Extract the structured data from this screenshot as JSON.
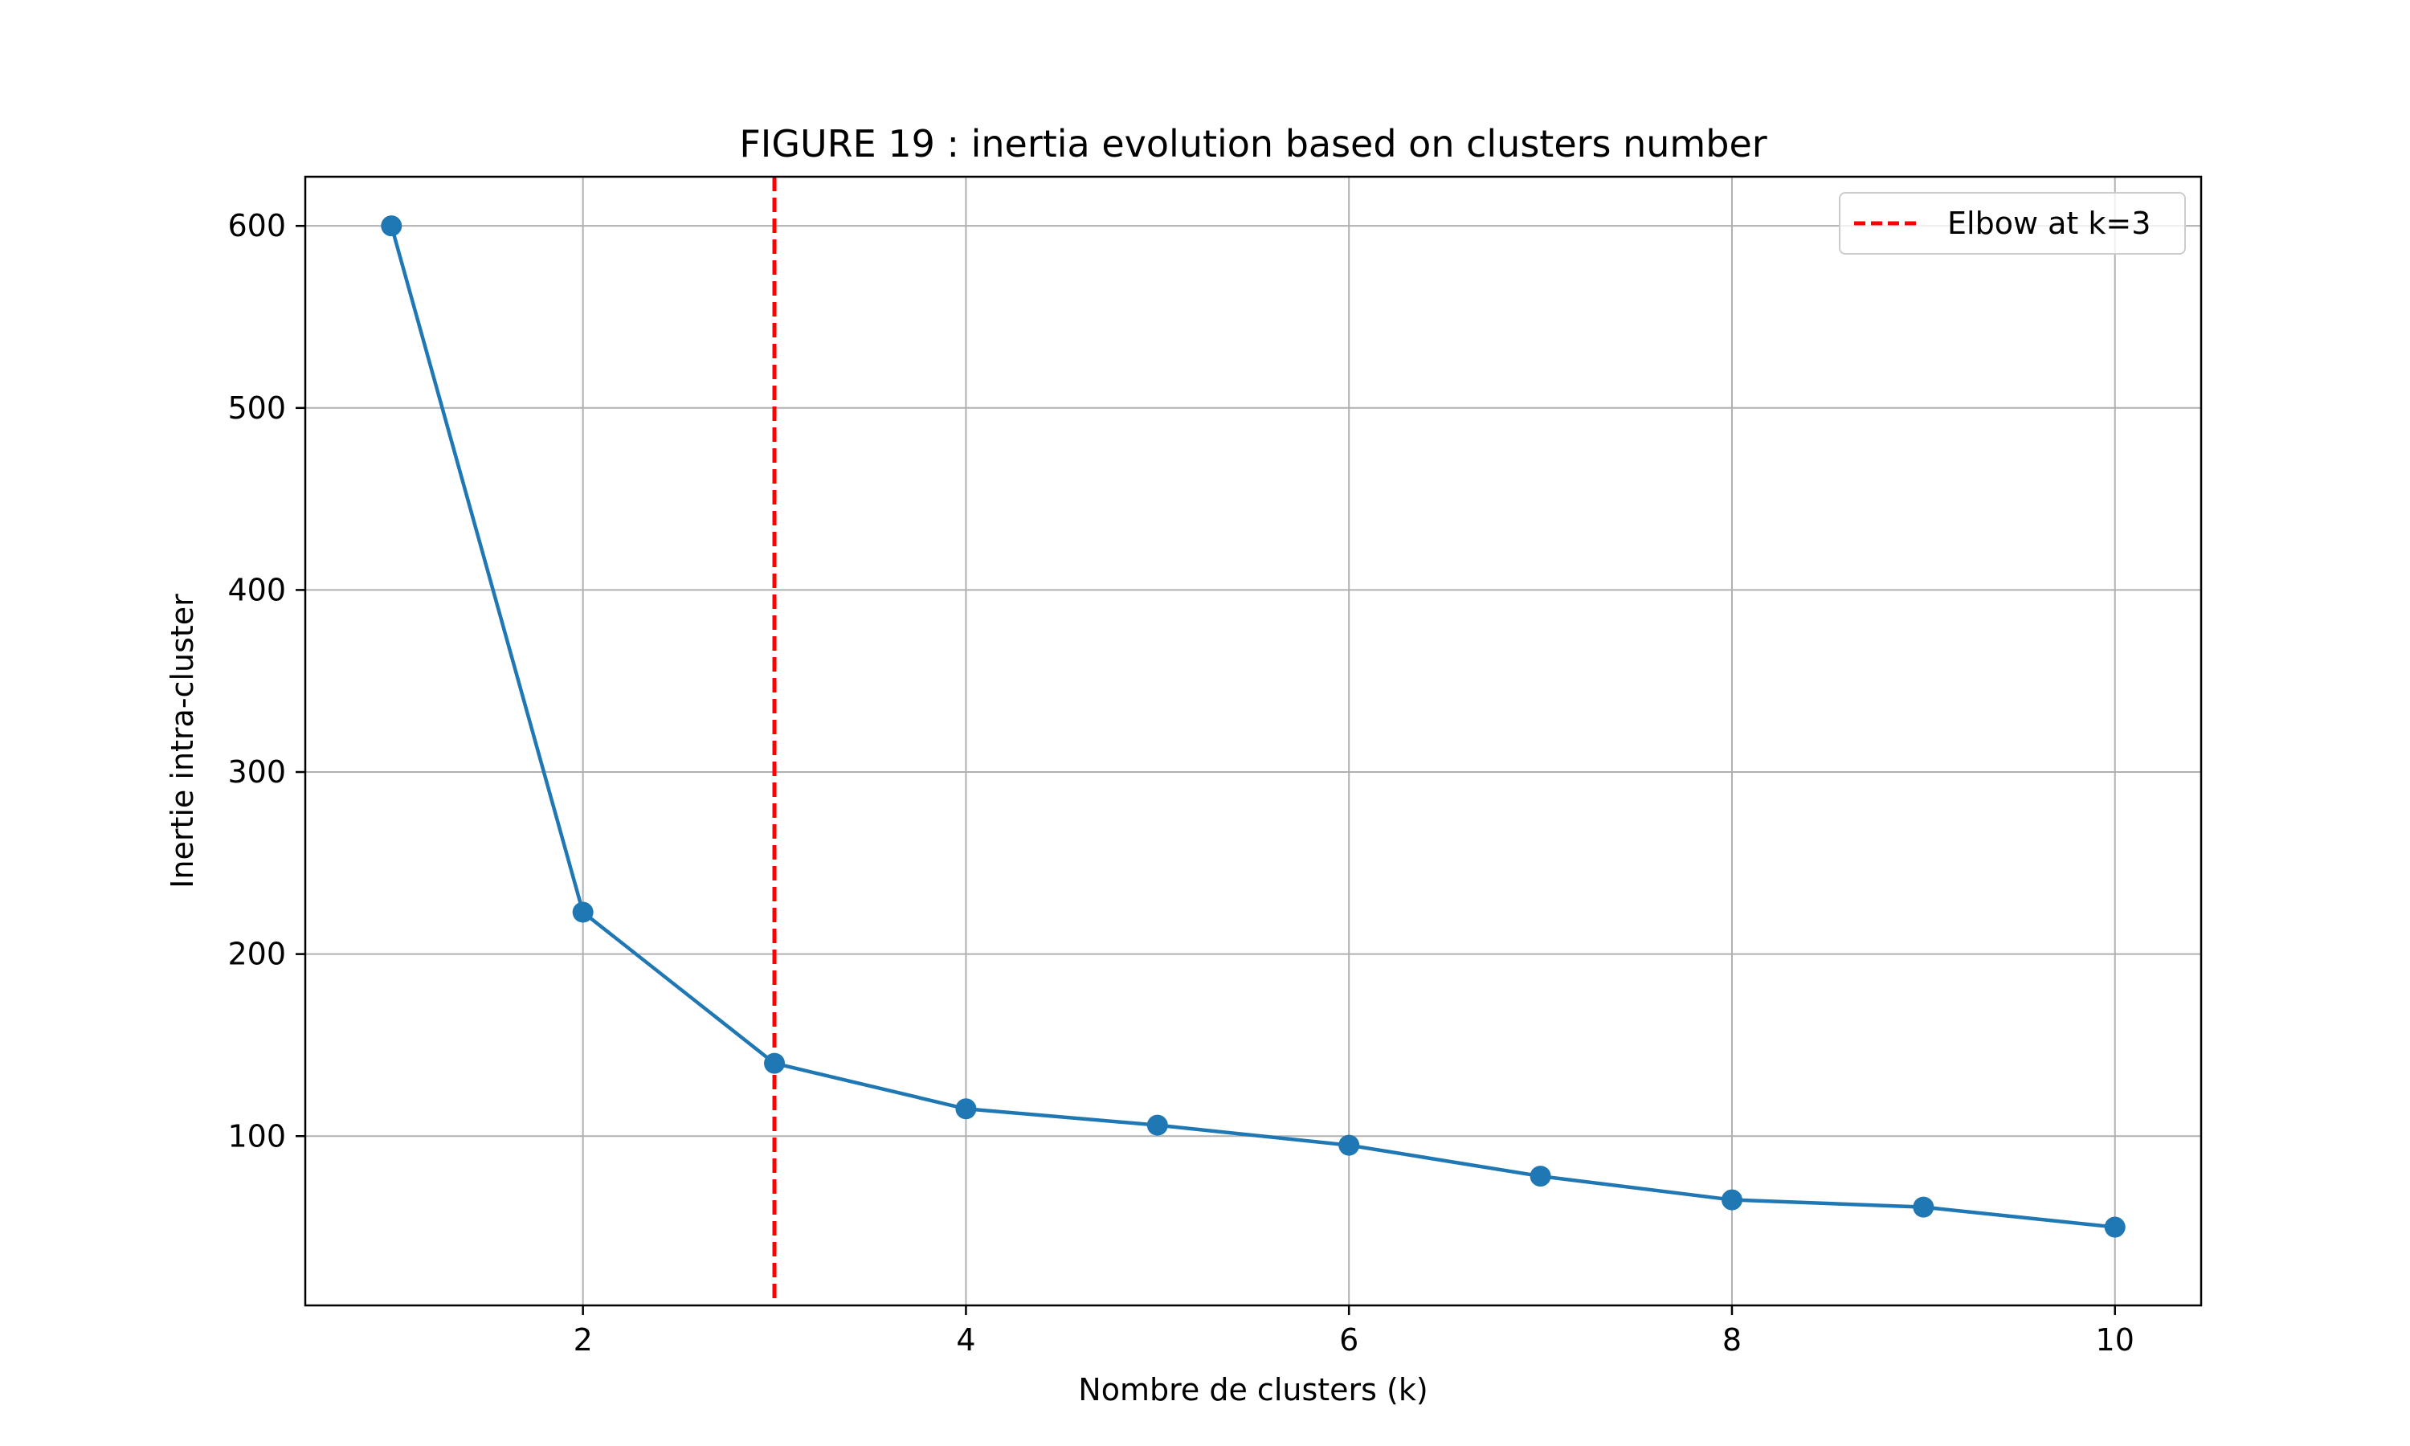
{
  "chart_data": {
    "type": "line",
    "title": "FIGURE 19 : inertia evolution based on clusters number",
    "xlabel": "Nombre de clusters (k)",
    "ylabel": "Inertie intra-cluster",
    "xlim": [
      0.55,
      10.45
    ],
    "ylim": [
      7,
      627
    ],
    "xticks": [
      2,
      4,
      6,
      8,
      10
    ],
    "yticks": [
      100,
      200,
      300,
      400,
      500,
      600
    ],
    "grid": true,
    "legend_position": "top-right",
    "series": [
      {
        "x": [
          1,
          2,
          3,
          4,
          5,
          6,
          7,
          8,
          9,
          10
        ],
        "values": [
          600,
          223,
          140,
          115,
          106,
          95,
          78,
          65,
          61,
          50
        ],
        "color": "#1f77b4",
        "marker": "circle"
      }
    ],
    "reference_lines": [
      {
        "orientation": "vertical",
        "x": 3,
        "label": "Elbow at k=3",
        "color": "#ff0000",
        "style": "dashed"
      }
    ]
  }
}
